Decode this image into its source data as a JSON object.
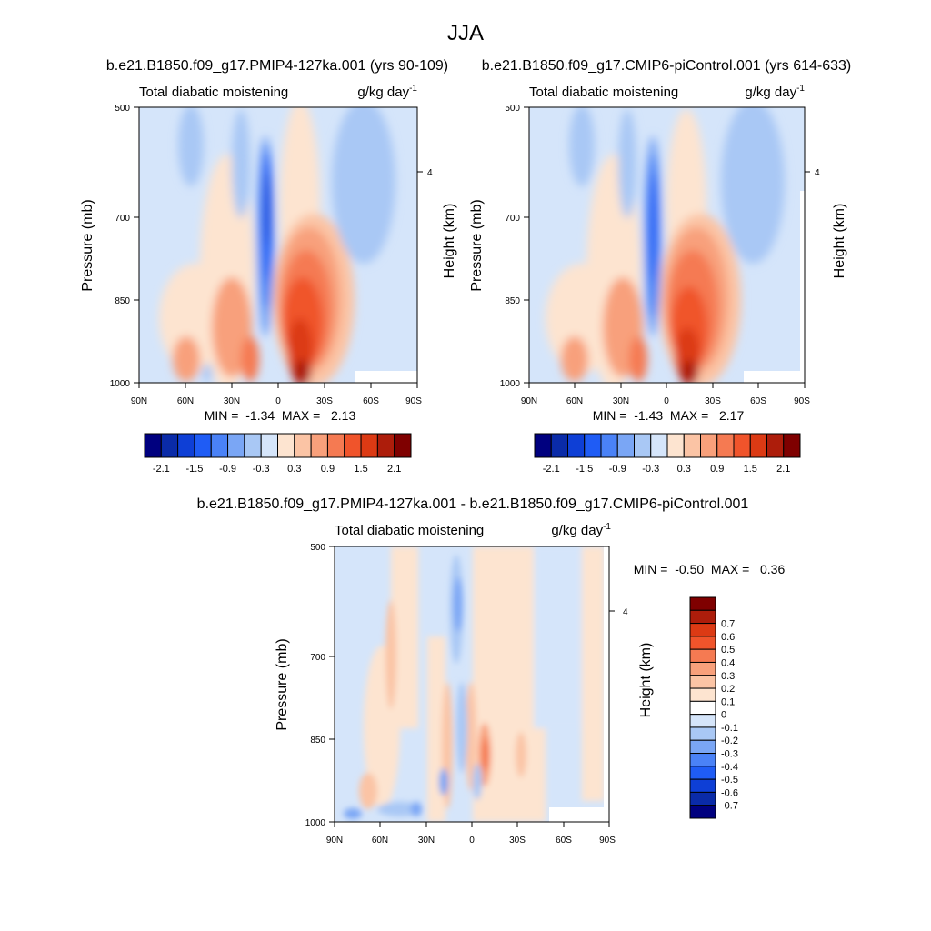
{
  "figure_title": "JJA",
  "chart_data": [
    {
      "type": "heatmap",
      "title": "b.e21.B1850.f09_g17.PMIP4-127ka.001 (yrs 90-109)",
      "left_label": "Total diabatic moistening",
      "right_label": "g/kg day",
      "unit_exp": "-1",
      "ylabel": "Pressure (mb)",
      "ylabel_right": "Height (km)",
      "x_ticks": [
        "90N",
        "60N",
        "30N",
        "0",
        "30S",
        "60S",
        "90S"
      ],
      "y_ticks": [
        "500",
        "700",
        "850",
        "1000"
      ],
      "right_ticks": [
        "4"
      ],
      "stats": "MIN =  -1.34  MAX =   2.13",
      "min": -1.34,
      "max": 2.13,
      "colorbar_labels": [
        "-2.1",
        "-1.5",
        "-0.9",
        "-0.3",
        "0.3",
        "0.9",
        "1.5",
        "2.1"
      ],
      "colorbar_colors": [
        "#00007f",
        "#0a2ba8",
        "#0e3fd6",
        "#1f5cf5",
        "#4a82f7",
        "#7aa6f5",
        "#a9c8f5",
        "#d5e5fa",
        "#fde4d0",
        "#fbc4a5",
        "#f8a07b",
        "#f57a52",
        "#f0542b",
        "#dc3a14",
        "#ad1d0b",
        "#7f0000"
      ],
      "ylim": [
        1000,
        500
      ],
      "xlim": [
        "90N",
        "90S"
      ]
    },
    {
      "type": "heatmap",
      "title": "b.e21.B1850.f09_g17.CMIP6-piControl.001 (yrs 614-633)",
      "left_label": "Total diabatic moistening",
      "right_label": "g/kg day",
      "unit_exp": "-1",
      "ylabel": "Pressure (mb)",
      "ylabel_right": "Height (km)",
      "x_ticks": [
        "90N",
        "60N",
        "30N",
        "0",
        "30S",
        "60S",
        "90S"
      ],
      "y_ticks": [
        "500",
        "700",
        "850",
        "1000"
      ],
      "right_ticks": [
        "4"
      ],
      "stats": "MIN =  -1.43  MAX =   2.17",
      "min": -1.43,
      "max": 2.17,
      "colorbar_labels": [
        "-2.1",
        "-1.5",
        "-0.9",
        "-0.3",
        "0.3",
        "0.9",
        "1.5",
        "2.1"
      ],
      "colorbar_colors": [
        "#00007f",
        "#0a2ba8",
        "#0e3fd6",
        "#1f5cf5",
        "#4a82f7",
        "#7aa6f5",
        "#a9c8f5",
        "#d5e5fa",
        "#fde4d0",
        "#fbc4a5",
        "#f8a07b",
        "#f57a52",
        "#f0542b",
        "#dc3a14",
        "#ad1d0b",
        "#7f0000"
      ],
      "ylim": [
        1000,
        500
      ],
      "xlim": [
        "90N",
        "90S"
      ]
    },
    {
      "type": "heatmap",
      "title": "b.e21.B1850.f09_g17.PMIP4-127ka.001 - b.e21.B1850.f09_g17.CMIP6-piControl.001",
      "left_label": "Total diabatic moistening",
      "right_label": "g/kg day",
      "unit_exp": "-1",
      "ylabel": "Pressure (mb)",
      "ylabel_right": "Height (km)",
      "x_ticks": [
        "90N",
        "60N",
        "30N",
        "0",
        "30S",
        "60S",
        "90S"
      ],
      "y_ticks": [
        "500",
        "700",
        "850",
        "1000"
      ],
      "right_ticks": [
        "4"
      ],
      "stats": "MIN =  -0.50  MAX =   0.36",
      "min": -0.5,
      "max": 0.36,
      "colorbar_labels": [
        "0.7",
        "0.6",
        "0.5",
        "0.4",
        "0.3",
        "0.2",
        "0.1",
        "0",
        "-0.1",
        "-0.2",
        "-0.3",
        "-0.4",
        "-0.5",
        "-0.6",
        "-0.7"
      ],
      "colorbar_colors": [
        "#7f0000",
        "#ad1d0b",
        "#dc3a14",
        "#f0542b",
        "#f57a52",
        "#f8a07b",
        "#fbc4a5",
        "#fde4d0",
        "#ffffff",
        "#d5e5fa",
        "#a9c8f5",
        "#7aa6f5",
        "#4a82f7",
        "#1f5cf5",
        "#0e3fd6",
        "#0a2ba8",
        "#00007f"
      ],
      "ylim": [
        1000,
        500
      ],
      "xlim": [
        "90N",
        "90S"
      ]
    }
  ]
}
